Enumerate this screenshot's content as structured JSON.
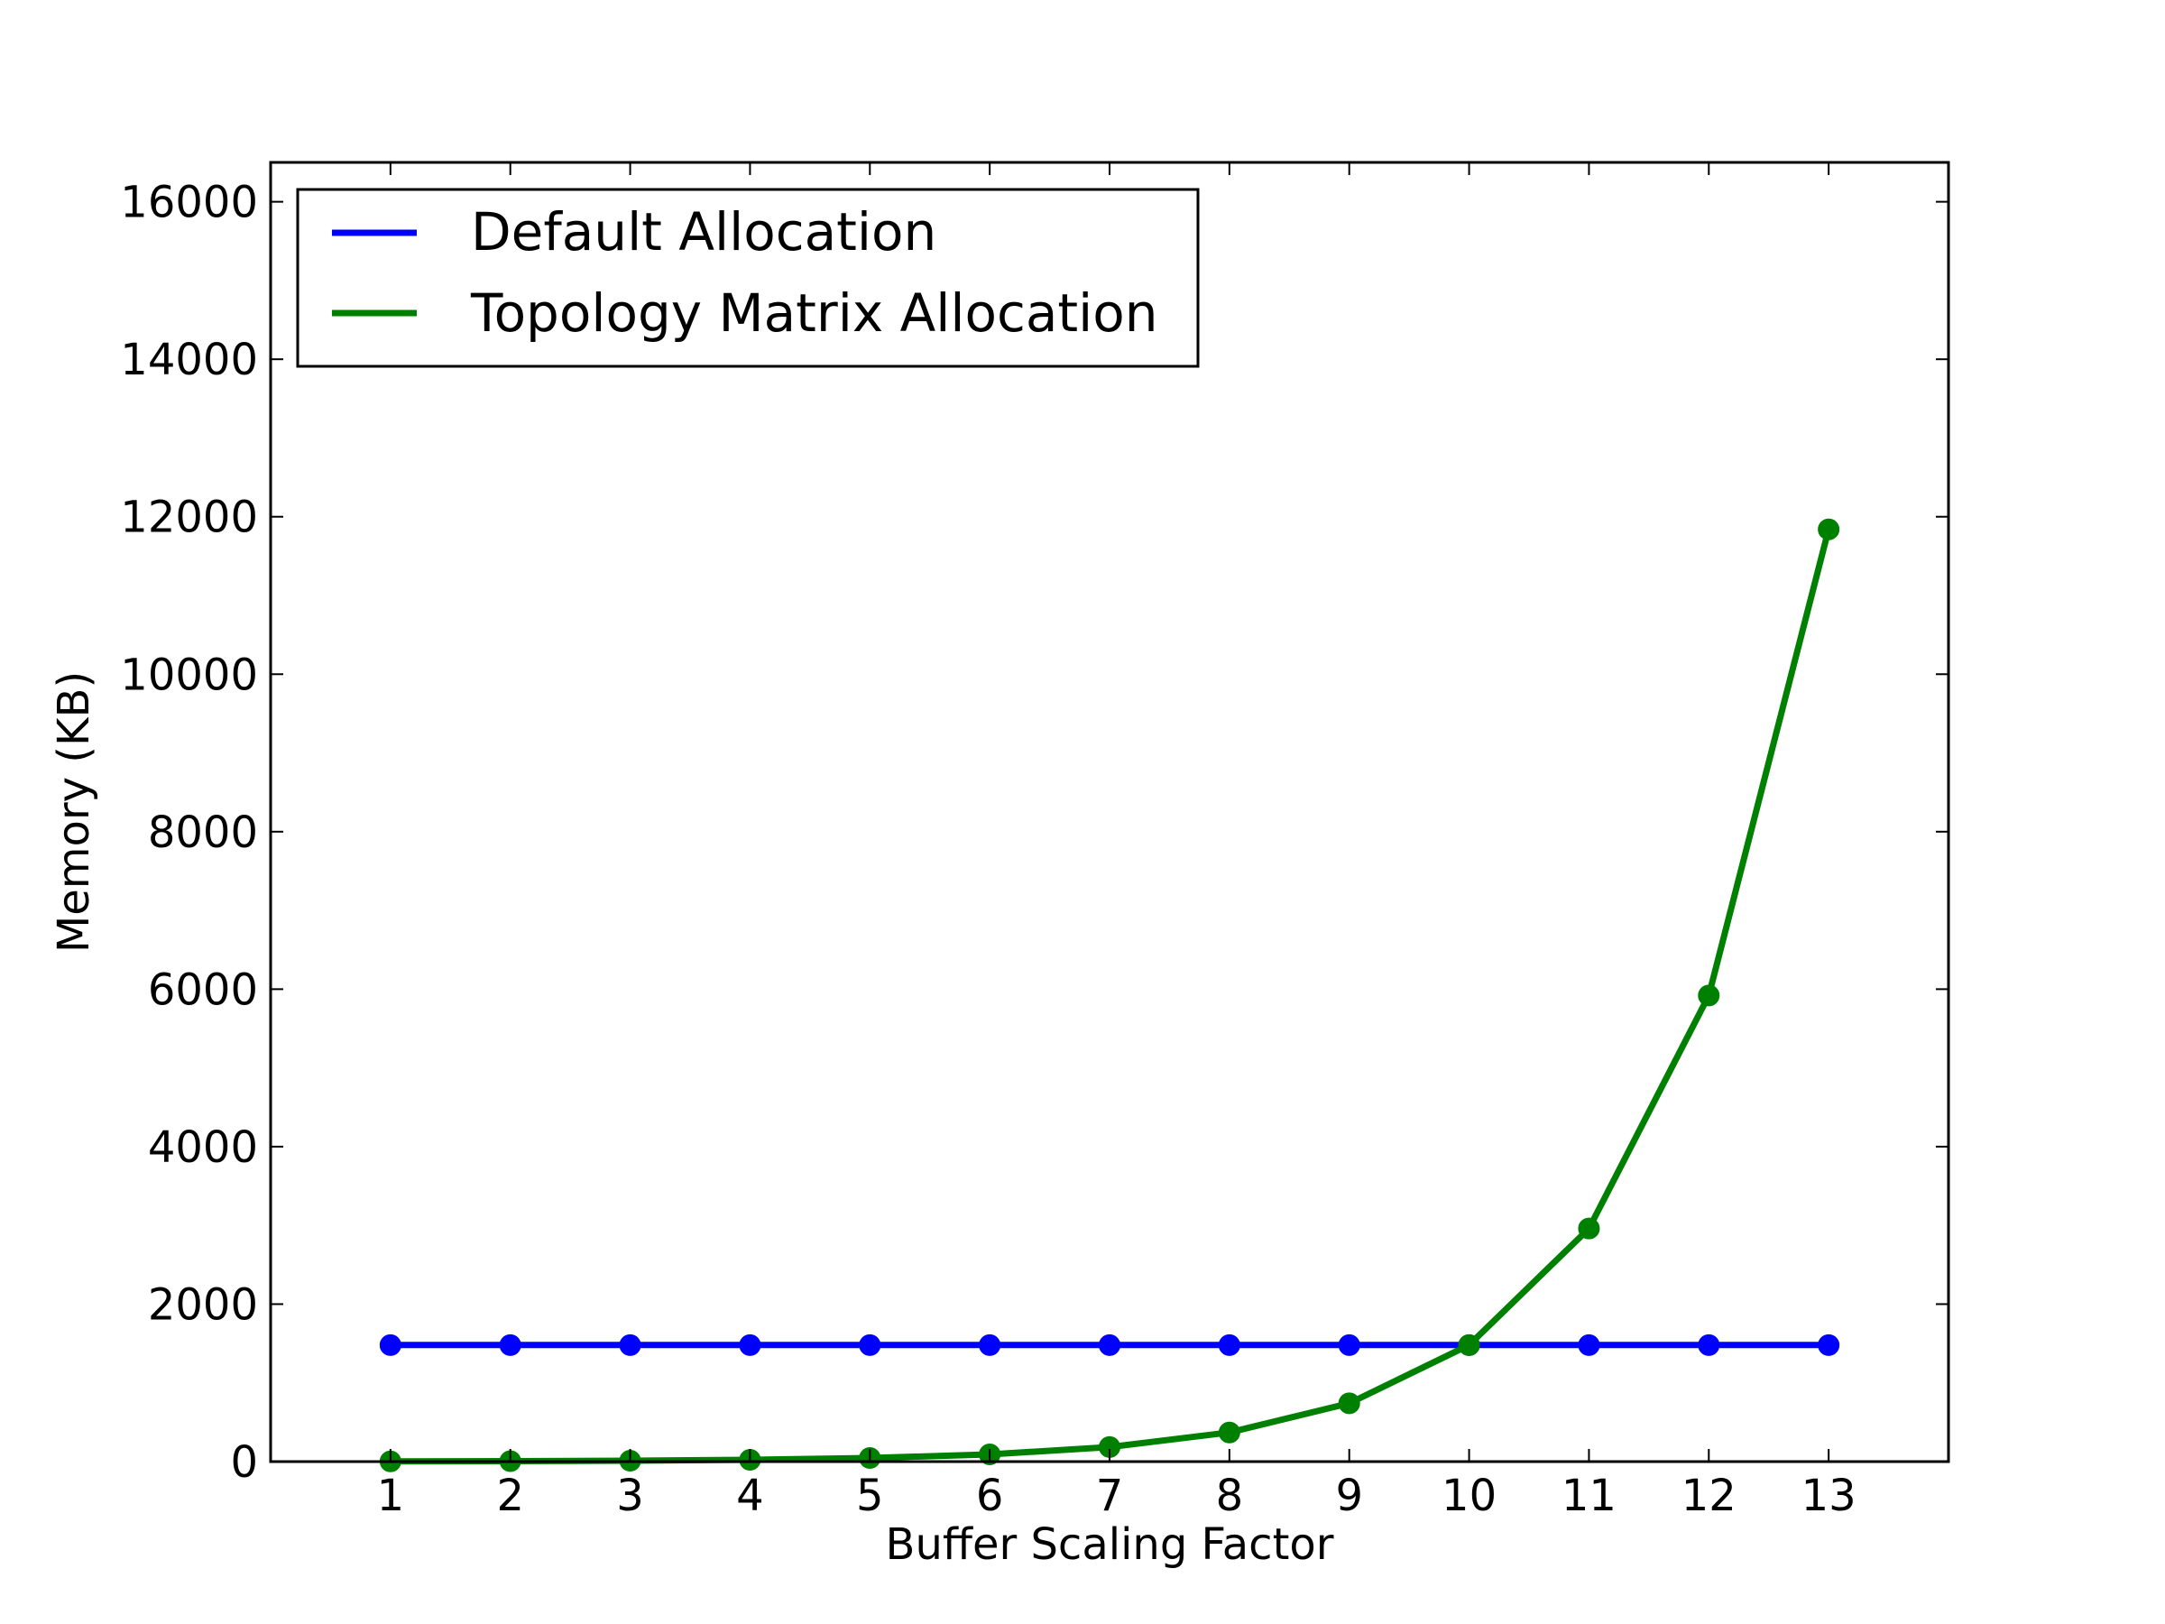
{
  "chart_data": {
    "type": "line",
    "xlabel": "Buffer Scaling Factor",
    "ylabel": "Memory (KB)",
    "x": [
      1,
      2,
      3,
      4,
      5,
      6,
      7,
      8,
      9,
      10,
      11,
      12,
      13
    ],
    "xlim": [
      0,
      14
    ],
    "ylim": [
      0,
      16500
    ],
    "xticks": [
      "1",
      "2",
      "3",
      "4",
      "5",
      "6",
      "7",
      "8",
      "9",
      "10",
      "11",
      "12",
      "13"
    ],
    "yticks": [
      "0",
      "2000",
      "4000",
      "6000",
      "8000",
      "10000",
      "12000",
      "14000",
      "16000"
    ],
    "grid": false,
    "legend_position": "top-left",
    "series": [
      {
        "name": "Default Allocation",
        "color": "#0000ff",
        "values": [
          1480,
          1480,
          1480,
          1480,
          1480,
          1480,
          1480,
          1480,
          1480,
          1480,
          1480,
          1480,
          1480
        ]
      },
      {
        "name": "Topology Matrix Allocation",
        "color": "#008000",
        "values": [
          3,
          6,
          12,
          23,
          46,
          92,
          185,
          370,
          740,
          1480,
          2960,
          5920,
          11840
        ]
      }
    ]
  }
}
